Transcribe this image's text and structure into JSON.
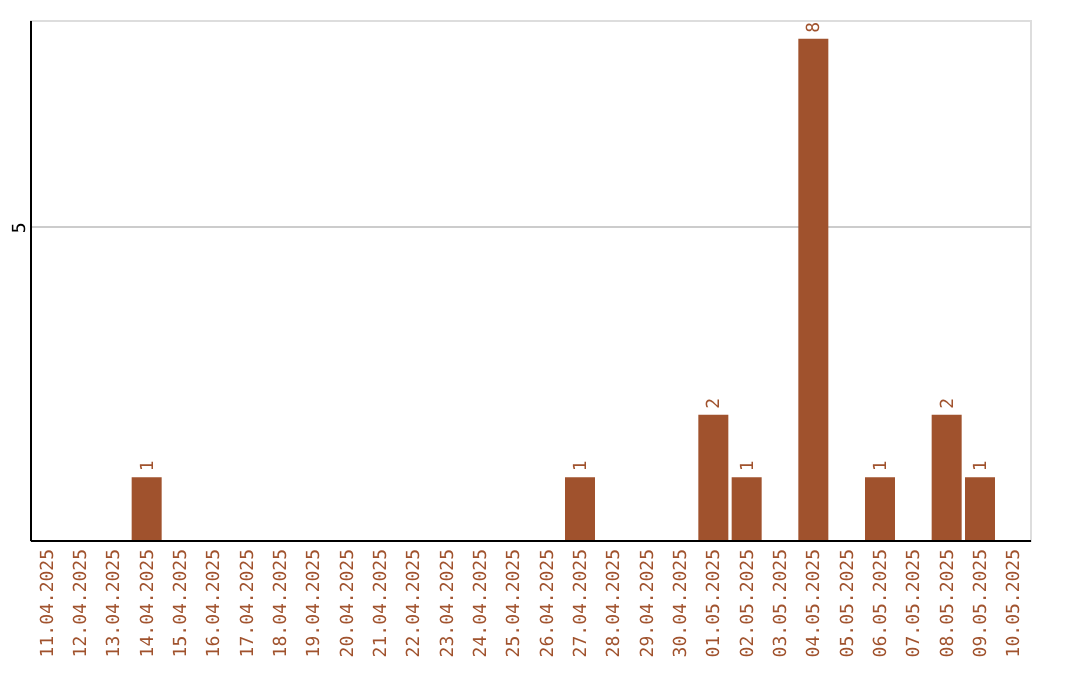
{
  "chart_data": {
    "type": "bar",
    "categories": [
      "11.04.2025",
      "12.04.2025",
      "13.04.2025",
      "14.04.2025",
      "15.04.2025",
      "16.04.2025",
      "17.04.2025",
      "18.04.2025",
      "19.04.2025",
      "20.04.2025",
      "21.04.2025",
      "22.04.2025",
      "23.04.2025",
      "24.04.2025",
      "25.04.2025",
      "26.04.2025",
      "27.04.2025",
      "28.04.2025",
      "29.04.2025",
      "30.04.2025",
      "01.05.2025",
      "02.05.2025",
      "03.05.2025",
      "04.05.2025",
      "05.05.2025",
      "06.05.2025",
      "07.05.2025",
      "08.05.2025",
      "09.05.2025",
      "10.05.2025"
    ],
    "values": [
      0,
      0,
      0,
      1,
      0,
      0,
      0,
      0,
      0,
      0,
      0,
      0,
      0,
      0,
      0,
      0,
      1,
      0,
      0,
      0,
      2,
      1,
      0,
      8,
      0,
      1,
      0,
      2,
      1,
      0
    ],
    "value_labels": [
      null,
      null,
      null,
      "1",
      null,
      null,
      null,
      null,
      null,
      null,
      null,
      null,
      null,
      null,
      null,
      null,
      "1",
      null,
      null,
      null,
      "2",
      "1",
      null,
      "8",
      null,
      "1",
      null,
      "2",
      "1",
      null
    ],
    "color": "#a0522d",
    "ylim": [
      0,
      8.3
    ],
    "yticks": [
      5
    ],
    "grid": "y"
  }
}
